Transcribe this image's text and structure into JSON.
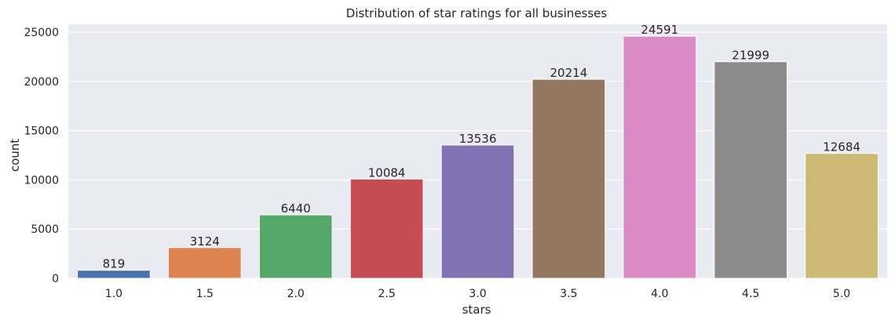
{
  "chart_data": {
    "type": "bar",
    "title": "Distribution of star ratings for all businesses",
    "xlabel": "stars",
    "ylabel": "count",
    "categories": [
      "1.0",
      "1.5",
      "2.0",
      "2.5",
      "3.0",
      "3.5",
      "4.0",
      "4.5",
      "5.0"
    ],
    "values": [
      819,
      3124,
      6440,
      10084,
      13536,
      20214,
      24591,
      21999,
      12684
    ],
    "data_labels": [
      "819",
      "3124",
      "6440",
      "10084",
      "13536",
      "20214",
      "24591",
      "21999",
      "12684"
    ],
    "colors": [
      "#4c72b0",
      "#dd8452",
      "#55a868",
      "#c44e52",
      "#8172b3",
      "#937860",
      "#da8bc3",
      "#8c8c8c",
      "#ccb974"
    ],
    "ylim": [
      0,
      25800
    ],
    "yticks": [
      0,
      5000,
      10000,
      15000,
      20000,
      25000
    ],
    "ytick_labels": [
      "0",
      "5000",
      "10000",
      "15000",
      "20000",
      "25000"
    ],
    "grid": true,
    "background": "#eaeaf2",
    "legend": "none"
  }
}
